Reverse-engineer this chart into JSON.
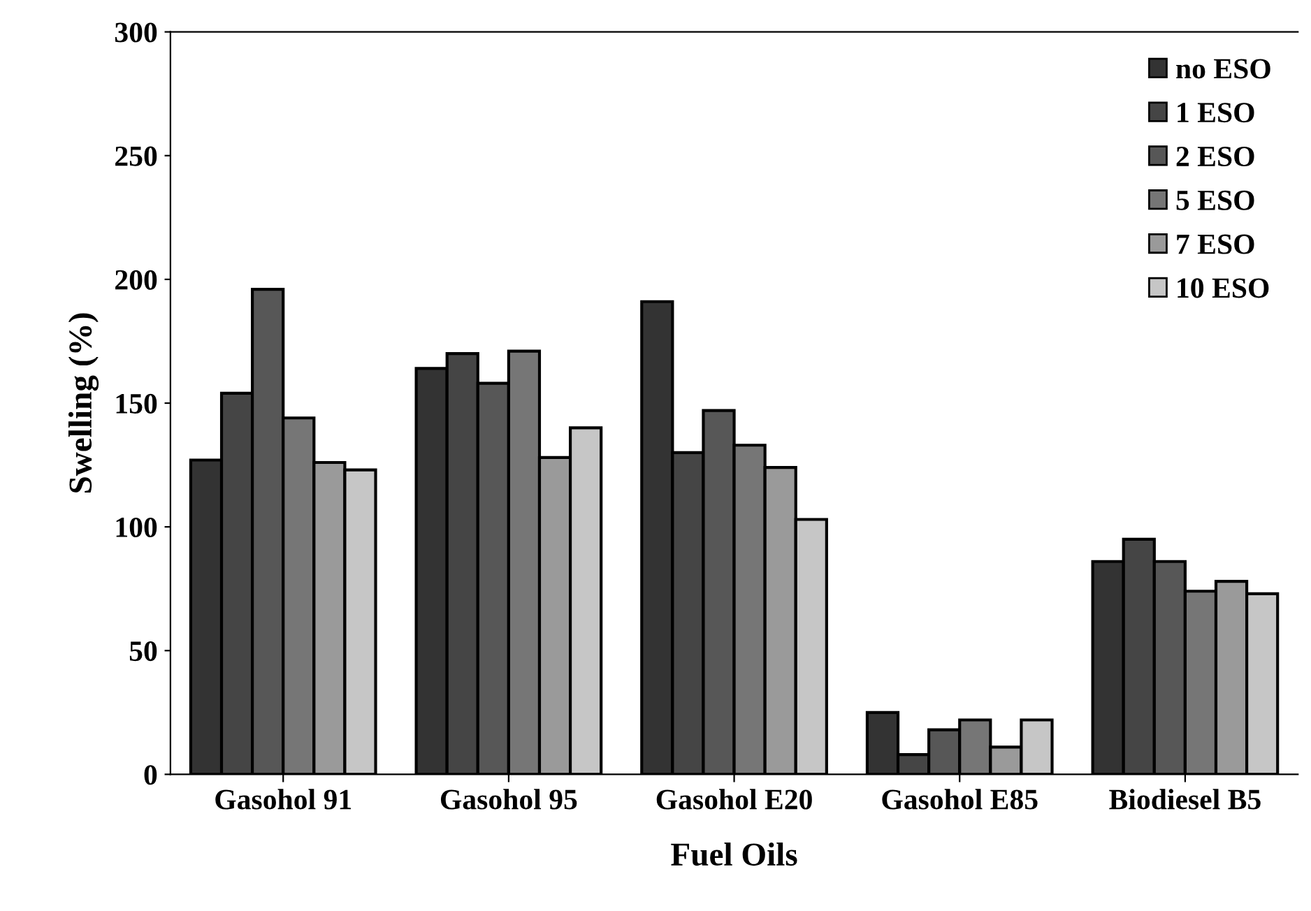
{
  "chart_data": {
    "type": "bar",
    "xlabel": "Fuel Oils",
    "ylabel": "Swelling (%)",
    "categories": [
      "Gasohol 91",
      "Gasohol 95",
      "Gasohol E20",
      "Gasohol E85",
      "Biodiesel B5"
    ],
    "series": [
      {
        "name": "no ESO",
        "color": "#333333",
        "values": [
          127,
          164,
          191,
          25,
          86
        ]
      },
      {
        "name": "1 ESO",
        "color": "#454545",
        "values": [
          154,
          170,
          130,
          8,
          95
        ]
      },
      {
        "name": "2 ESO",
        "color": "#575757",
        "values": [
          196,
          158,
          147,
          18,
          86
        ]
      },
      {
        "name": "5 ESO",
        "color": "#767676",
        "values": [
          144,
          171,
          133,
          22,
          74
        ]
      },
      {
        "name": "7 ESO",
        "color": "#9a9a9a",
        "values": [
          126,
          128,
          124,
          11,
          78
        ]
      },
      {
        "name": "10 ESO",
        "color": "#c6c6c6",
        "values": [
          123,
          140,
          103,
          22,
          73
        ]
      }
    ],
    "ylim": [
      0,
      300
    ],
    "yticks": [
      0,
      50,
      100,
      150,
      200,
      250,
      300
    ],
    "grid": false,
    "legend": "top right"
  }
}
